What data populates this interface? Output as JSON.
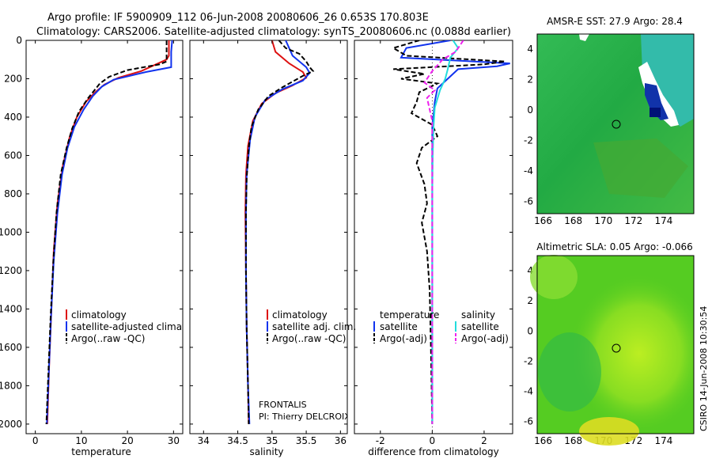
{
  "header": {
    "title_line1": "Argo profile: IF 5900909_112 06-Jun-2008 20080606_26 0.653S 170.803E",
    "title_line2": "Climatology: CARS2006. Satellite-adjusted climatology: synTS_20080606.nc (0.088d earlier)"
  },
  "credit": "CSIRO 14-Jun-2008 10:30:54",
  "colors": {
    "red": "#dd1111",
    "blue": "#1133ee",
    "black": "#000000",
    "cyan": "#22dddd",
    "magenta": "#ee22ee"
  },
  "chart_data": [
    {
      "type": "line",
      "name": "temperature",
      "xlabel": "temperature",
      "ylabel": "",
      "xlim": [
        -2,
        32
      ],
      "ylim": [
        2050,
        0
      ],
      "xticks": [
        0,
        10,
        20,
        30
      ],
      "yticks": [
        0,
        200,
        400,
        600,
        800,
        1000,
        1200,
        1400,
        1600,
        1800,
        2000
      ],
      "legend": [
        "climatology",
        "satellite-adjusted climatology",
        "Argo(..raw -QC)"
      ],
      "series": [
        {
          "name": "climatology",
          "color": "#dd1111",
          "dash": false,
          "points": [
            [
              29,
              0
            ],
            [
              29,
              80
            ],
            [
              28.5,
              100
            ],
            [
              23,
              160
            ],
            [
              18,
              195
            ],
            [
              15,
              230
            ],
            [
              13,
              270
            ],
            [
              11,
              320
            ],
            [
              9,
              400
            ],
            [
              7.5,
              500
            ],
            [
              6,
              650
            ],
            [
              4.8,
              850
            ],
            [
              4,
              1100
            ],
            [
              3.5,
              1400
            ],
            [
              3,
              1700
            ],
            [
              2.6,
              2000
            ]
          ]
        },
        {
          "name": "satellite-adjusted climatology",
          "color": "#1133ee",
          "dash": false,
          "points": [
            [
              29.7,
              0
            ],
            [
              29.5,
              60
            ],
            [
              29.5,
              140
            ],
            [
              24,
              165
            ],
            [
              17,
              205
            ],
            [
              14.5,
              240
            ],
            [
              12.5,
              290
            ],
            [
              10.5,
              360
            ],
            [
              8.5,
              450
            ],
            [
              7,
              560
            ],
            [
              5.8,
              700
            ],
            [
              4.8,
              900
            ],
            [
              4,
              1150
            ],
            [
              3.4,
              1450
            ],
            [
              2.9,
              1750
            ],
            [
              2.5,
              2000
            ]
          ]
        },
        {
          "name": "Argo(..raw -QC)",
          "color": "#000000",
          "dash": true,
          "points": [
            [
              28.5,
              0
            ],
            [
              28.5,
              30
            ],
            [
              28.5,
              110
            ],
            [
              27,
              125
            ],
            [
              20,
              155
            ],
            [
              16,
              190
            ],
            [
              14,
              225
            ],
            [
              13,
              255
            ],
            [
              11.5,
              300
            ],
            [
              9.5,
              370
            ],
            [
              8,
              460
            ],
            [
              6.8,
              560
            ],
            [
              5.5,
              700
            ],
            [
              4.6,
              900
            ],
            [
              3.9,
              1150
            ],
            [
              3.3,
              1450
            ],
            [
              2.8,
              1750
            ],
            [
              2.4,
              2000
            ]
          ]
        }
      ]
    },
    {
      "type": "line",
      "name": "salinity",
      "xlabel": "salinity",
      "ylabel": "",
      "xlim": [
        33.8,
        36.1
      ],
      "ylim": [
        2050,
        0
      ],
      "xticks": [
        34,
        34.5,
        35,
        35.5,
        36
      ],
      "yticks": [],
      "legend": [
        "climatology",
        "satellite adj. clim.",
        "Argo(..raw -QC)"
      ],
      "annotation": [
        "FRONTALIS",
        "PI: Thierry DELCROIX"
      ],
      "series": [
        {
          "name": "climatology",
          "color": "#dd1111",
          "dash": false,
          "points": [
            [
              35.0,
              0
            ],
            [
              35.05,
              60
            ],
            [
              35.25,
              120
            ],
            [
              35.45,
              165
            ],
            [
              35.5,
              195
            ],
            [
              35.3,
              235
            ],
            [
              35.05,
              275
            ],
            [
              34.85,
              330
            ],
            [
              34.72,
              420
            ],
            [
              34.65,
              550
            ],
            [
              34.62,
              700
            ],
            [
              34.61,
              900
            ],
            [
              34.62,
              1200
            ],
            [
              34.63,
              1500
            ],
            [
              34.65,
              1800
            ],
            [
              34.66,
              2000
            ]
          ]
        },
        {
          "name": "satellite adj. clim.",
          "color": "#1133ee",
          "dash": false,
          "points": [
            [
              35.2,
              0
            ],
            [
              35.25,
              40
            ],
            [
              35.3,
              80
            ],
            [
              35.5,
              140
            ],
            [
              35.55,
              170
            ],
            [
              35.45,
              210
            ],
            [
              35.15,
              255
            ],
            [
              34.9,
              310
            ],
            [
              34.75,
              400
            ],
            [
              34.68,
              520
            ],
            [
              34.63,
              700
            ],
            [
              34.62,
              900
            ],
            [
              34.62,
              1200
            ],
            [
              34.63,
              1500
            ],
            [
              34.65,
              1800
            ],
            [
              34.67,
              2000
            ]
          ]
        },
        {
          "name": "Argo(..raw -QC)",
          "color": "#000000",
          "dash": true,
          "points": [
            [
              35.1,
              0
            ],
            [
              35.2,
              40
            ],
            [
              35.4,
              70
            ],
            [
              35.5,
              110
            ],
            [
              35.55,
              140
            ],
            [
              35.6,
              160
            ],
            [
              35.45,
              185
            ],
            [
              35.3,
              215
            ],
            [
              35.15,
              245
            ],
            [
              34.95,
              290
            ],
            [
              34.8,
              360
            ],
            [
              34.7,
              450
            ],
            [
              34.66,
              560
            ],
            [
              34.63,
              720
            ],
            [
              34.62,
              900
            ],
            [
              34.62,
              1200
            ],
            [
              34.63,
              1500
            ],
            [
              34.65,
              1800
            ],
            [
              34.66,
              2000
            ]
          ]
        }
      ]
    },
    {
      "type": "line",
      "name": "difference from climatology",
      "xlabel": "difference from climatology",
      "ylabel": "",
      "xlim": [
        -3,
        3.1
      ],
      "ylim": [
        2050,
        0
      ],
      "xticks": [
        -2,
        0,
        2
      ],
      "yticks": [],
      "legend_left_title": "temperature",
      "legend_right_title": "salinity",
      "legend": [
        "satellite",
        "Argo(-adj)",
        "satellite",
        "Argo(-adj)"
      ],
      "series": [
        {
          "name": "temperature satellite",
          "color": "#1133ee",
          "dash": false,
          "points": [
            [
              0.7,
              0
            ],
            [
              -1.0,
              40
            ],
            [
              -1.2,
              90
            ],
            [
              3.0,
              120
            ],
            [
              2.5,
              135
            ],
            [
              1.0,
              150
            ],
            [
              0.6,
              200
            ],
            [
              0.2,
              250
            ],
            [
              0.1,
              320
            ],
            [
              0,
              450
            ],
            [
              0,
              700
            ],
            [
              0,
              1000
            ],
            [
              0,
              1400
            ],
            [
              0,
              1700
            ],
            [
              0,
              2000
            ]
          ]
        },
        {
          "name": "temperature Argo(-adj)",
          "color": "#000000",
          "dash": true,
          "points": [
            [
              -0.5,
              0
            ],
            [
              -1.5,
              40
            ],
            [
              -1.0,
              80
            ],
            [
              2.8,
              110
            ],
            [
              2.0,
              125
            ],
            [
              -1.5,
              150
            ],
            [
              -0.3,
              175
            ],
            [
              -1.2,
              200
            ],
            [
              0.2,
              225
            ],
            [
              -0.5,
              270
            ],
            [
              -0.6,
              320
            ],
            [
              -0.8,
              380
            ],
            [
              0,
              440
            ],
            [
              0.2,
              500
            ],
            [
              -0.4,
              560
            ],
            [
              -0.6,
              640
            ],
            [
              -0.3,
              750
            ],
            [
              -0.2,
              850
            ],
            [
              -0.4,
              950
            ],
            [
              -0.2,
              1100
            ],
            [
              -0.1,
              1300
            ],
            [
              -0.05,
              1600
            ],
            [
              0,
              2000
            ]
          ]
        },
        {
          "name": "salinity satellite",
          "color": "#22dddd",
          "dash": false,
          "points": [
            [
              0.8,
              0
            ],
            [
              1.0,
              40
            ],
            [
              0.7,
              90
            ],
            [
              0.6,
              150
            ],
            [
              0.5,
              200
            ],
            [
              0.3,
              260
            ],
            [
              0.1,
              350
            ],
            [
              0.05,
              450
            ],
            [
              0.02,
              600
            ],
            [
              0,
              800
            ],
            [
              0,
              1200
            ],
            [
              0,
              1600
            ],
            [
              0,
              2000
            ]
          ]
        },
        {
          "name": "salinity Argo(-adj)",
          "color": "#ee22ee",
          "dash": true,
          "points": [
            [
              1.2,
              0
            ],
            [
              0.9,
              60
            ],
            [
              0.4,
              100
            ],
            [
              0.0,
              160
            ],
            [
              -0.3,
              220
            ],
            [
              0.1,
              260
            ],
            [
              -0.2,
              300
            ],
            [
              -0.1,
              360
            ],
            [
              0.0,
              420
            ],
            [
              0.0,
              600
            ],
            [
              0.0,
              800
            ],
            [
              0.0,
              1200
            ],
            [
              0.0,
              1600
            ],
            [
              0.0,
              2000
            ]
          ]
        }
      ]
    },
    {
      "type": "heatmap",
      "name": "sst-map",
      "title": "AMSR-E SST: 27.9 Argo: 28.4",
      "xlim": [
        165.6,
        176
      ],
      "ylim": [
        -6.8,
        5
      ],
      "xticks": [
        166,
        168,
        170,
        172,
        174
      ],
      "yticks": [
        4,
        2,
        0,
        -2,
        -4,
        -6
      ],
      "marker": [
        170.8,
        -0.65
      ]
    },
    {
      "type": "heatmap",
      "name": "sla-map",
      "title": "Altimetric SLA: 0.05 Argo: -0.066",
      "xlim": [
        165.6,
        176
      ],
      "ylim": [
        -6.8,
        5
      ],
      "xticks": [
        166,
        168,
        170,
        172,
        174
      ],
      "yticks": [
        4,
        2,
        0,
        -2,
        -4,
        -6
      ],
      "marker": [
        170.8,
        -0.65
      ]
    }
  ]
}
